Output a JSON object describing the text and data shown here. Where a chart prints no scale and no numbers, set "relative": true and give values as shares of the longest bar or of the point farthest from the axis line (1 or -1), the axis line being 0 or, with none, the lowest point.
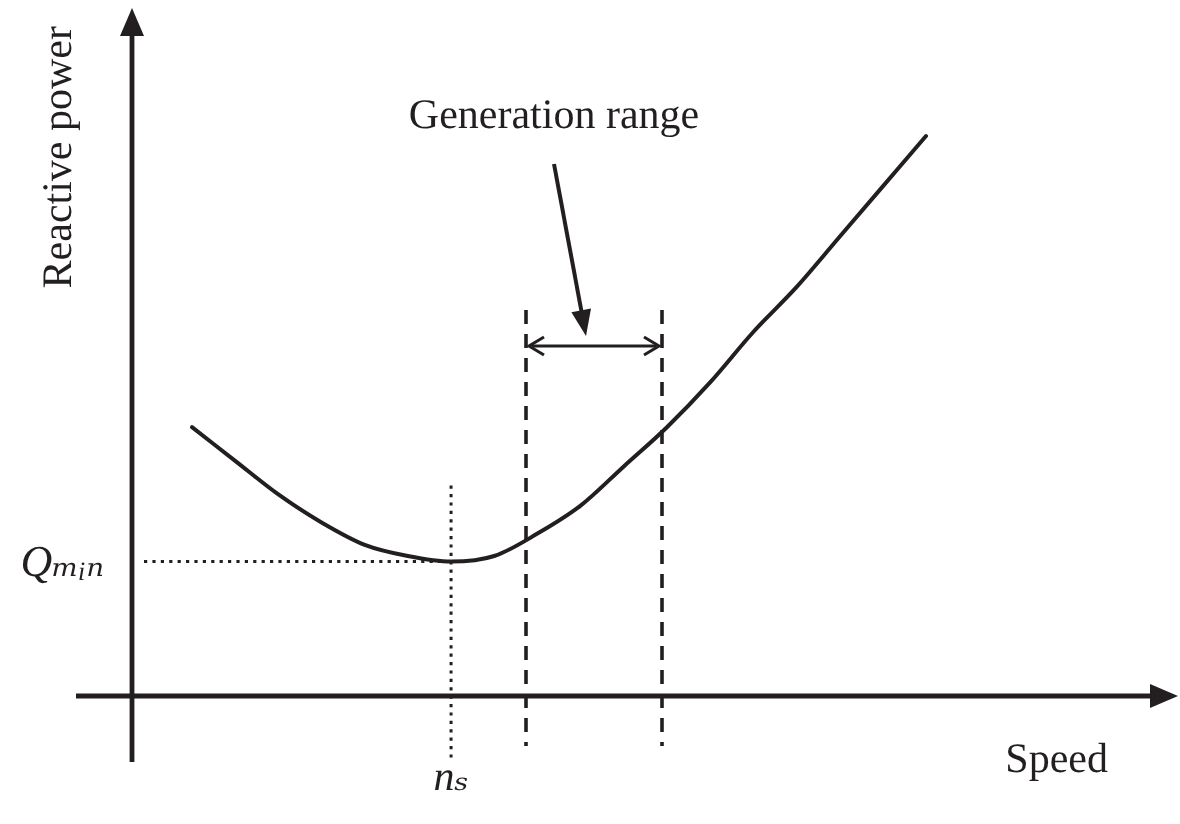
{
  "chart_data": {
    "type": "line",
    "relative": true,
    "xlabel": "Speed",
    "ylabel": "Reactive power",
    "categories": [
      null,
      null,
      null,
      null,
      null,
      null,
      null,
      null,
      null,
      null,
      null,
      null,
      null,
      null,
      null,
      null,
      null,
      null
    ],
    "values": [
      0.48,
      0.42,
      0.36,
      0.31,
      0.27,
      0.25,
      0.24,
      0.25,
      0.29,
      0.34,
      0.41,
      0.48,
      0.56,
      0.65,
      0.73,
      0.82,
      0.91,
      1.0
    ],
    "color": "#231f20",
    "marker": "none",
    "ref_lines": [
      {
        "axis": "y",
        "value": 0.24,
        "label": "Qₘᵢₙ",
        "line_style": "dotted"
      }
    ],
    "annotations": [
      "Generation range",
      "nₛ"
    ]
  }
}
